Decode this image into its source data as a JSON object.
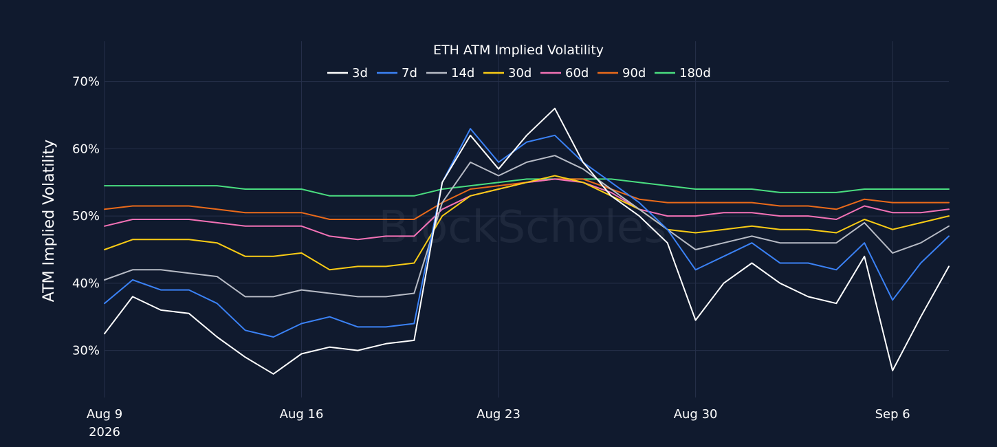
{
  "chart_data": {
    "type": "line",
    "title": "ETH ATM Implied Volatility",
    "xlabel": "",
    "ylabel": "ATM Implied Volatility",
    "watermark": "BlockScholes",
    "x_range": [
      "2026-08-09",
      "2026-09-08"
    ],
    "ylim": [
      23,
      76
    ],
    "y_ticks": [
      30,
      40,
      50,
      60,
      70
    ],
    "y_tick_labels": [
      "30%",
      "40%",
      "50%",
      "60%",
      "70%"
    ],
    "x_ticks": [
      "2026-08-09",
      "2026-08-16",
      "2026-08-23",
      "2026-08-30",
      "2026-09-06"
    ],
    "x_tick_labels": [
      "Aug 9",
      "Aug 16",
      "Aug 23",
      "Aug 30",
      "Sep 6"
    ],
    "x_tick_year": "2026",
    "grid": true,
    "legend_position": "top-center",
    "background_color": "#101a2e",
    "grid_color": "#26304a",
    "x": [
      "2026-08-09",
      "2026-08-10",
      "2026-08-11",
      "2026-08-12",
      "2026-08-13",
      "2026-08-14",
      "2026-08-15",
      "2026-08-16",
      "2026-08-17",
      "2026-08-18",
      "2026-08-19",
      "2026-08-20",
      "2026-08-21",
      "2026-08-22",
      "2026-08-23",
      "2026-08-24",
      "2026-08-25",
      "2026-08-26",
      "2026-08-27",
      "2026-08-28",
      "2026-08-29",
      "2026-08-30",
      "2026-08-31",
      "2026-09-01",
      "2026-09-02",
      "2026-09-03",
      "2026-09-04",
      "2026-09-05",
      "2026-09-06",
      "2026-09-07",
      "2026-09-08"
    ],
    "series": [
      {
        "name": "3d",
        "color": "#ffffff",
        "values": [
          32.5,
          38,
          36,
          35.5,
          32,
          29,
          26.5,
          29.5,
          30.5,
          30,
          31,
          31.5,
          55,
          62,
          57,
          62,
          66,
          58,
          53,
          50,
          46,
          34.5,
          40,
          43,
          40,
          38,
          37,
          44,
          27,
          35,
          42.5
        ]
      },
      {
        "name": "7d",
        "color": "#3b82f6",
        "values": [
          37,
          40.5,
          39,
          39,
          37,
          33,
          32,
          34,
          35,
          33.5,
          33.5,
          34,
          55,
          63,
          58,
          61,
          62,
          58,
          55,
          52,
          48,
          42,
          44,
          46,
          43,
          43,
          42,
          46,
          37.5,
          43,
          47
        ]
      },
      {
        "name": "14d",
        "color": "#b8bcc6",
        "values": [
          40.5,
          42,
          42,
          41.5,
          41,
          38,
          38,
          39,
          38.5,
          38,
          38,
          38.5,
          52,
          58,
          56,
          58,
          59,
          57,
          54,
          51,
          48,
          45,
          46,
          47,
          46,
          46,
          46,
          49,
          44.5,
          46,
          48.5
        ]
      },
      {
        "name": "30d",
        "color": "#facc15",
        "values": [
          45,
          46.5,
          46.5,
          46.5,
          46,
          44,
          44,
          44.5,
          42,
          42.5,
          42.5,
          43,
          50,
          53,
          54,
          55,
          56,
          55,
          53,
          51,
          48,
          47.5,
          48,
          48.5,
          48,
          48,
          47.5,
          49.5,
          48,
          49,
          50
        ]
      },
      {
        "name": "60d",
        "color": "#f472b6",
        "values": [
          48.5,
          49.5,
          49.5,
          49.5,
          49,
          48.5,
          48.5,
          48.5,
          47,
          46.5,
          47,
          47,
          51,
          53,
          54,
          55,
          55.5,
          55,
          53.5,
          51,
          50,
          50,
          50.5,
          50.5,
          50,
          50,
          49.5,
          51.5,
          50.5,
          50.5,
          51
        ]
      },
      {
        "name": "90d",
        "color": "#ea6a1a",
        "values": [
          51,
          51.5,
          51.5,
          51.5,
          51,
          50.5,
          50.5,
          50.5,
          49.5,
          49.5,
          49.5,
          49.5,
          52,
          54,
          54.5,
          55,
          55.5,
          55.5,
          54,
          52.5,
          52,
          52,
          52,
          52,
          51.5,
          51.5,
          51,
          52.5,
          52,
          52,
          52
        ]
      },
      {
        "name": "180d",
        "color": "#4ade80",
        "values": [
          54.5,
          54.5,
          54.5,
          54.5,
          54.5,
          54,
          54,
          54,
          53,
          53,
          53,
          53,
          54,
          54.5,
          55,
          55.5,
          55.5,
          55.5,
          55.5,
          55,
          54.5,
          54,
          54,
          54,
          53.5,
          53.5,
          53.5,
          54,
          54,
          54,
          54
        ]
      }
    ]
  }
}
